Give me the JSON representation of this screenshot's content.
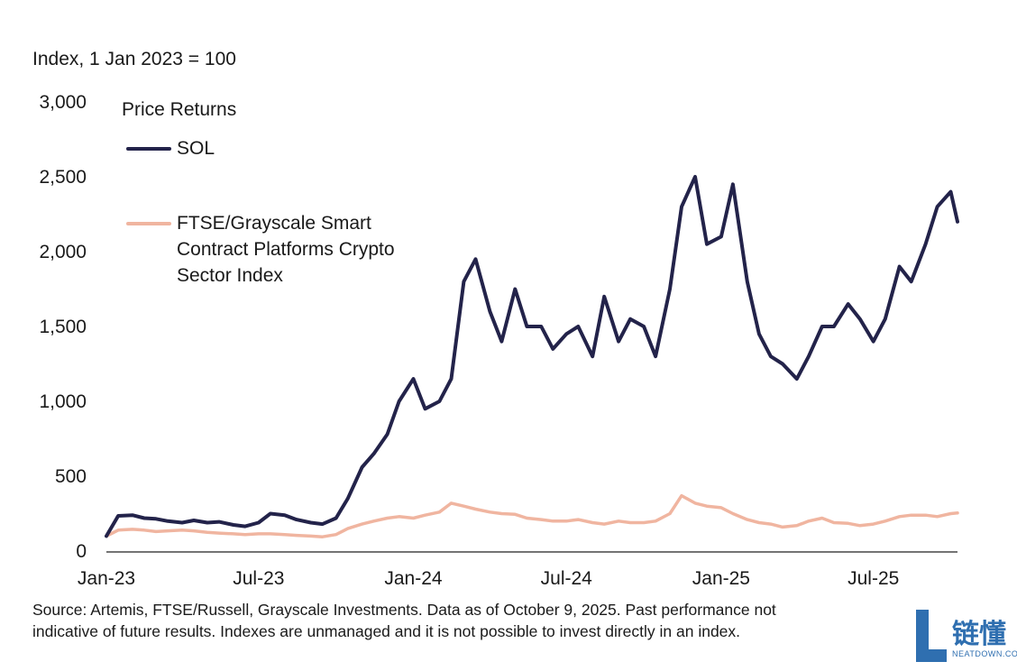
{
  "chart_data": {
    "type": "line",
    "title": "",
    "ylabel": "Index, 1 Jan 2023 = 100",
    "legend_title": "Price Returns",
    "legend_position": "top-left",
    "grid": false,
    "ylim": [
      0,
      3000
    ],
    "yticks": [
      "0",
      "500",
      "1,000",
      "1,500",
      "2,000",
      "2,500",
      "3,000"
    ],
    "ytick_values": [
      0,
      500,
      1000,
      1500,
      2000,
      2500,
      3000
    ],
    "xlim": [
      "2023-01-01",
      "2025-10-09"
    ],
    "xticks": [
      "Jan-23",
      "Jul-23",
      "Jan-24",
      "Jul-24",
      "Jan-25",
      "Jul-25"
    ],
    "xtick_dates": [
      "2023-01-01",
      "2023-07-01",
      "2024-01-01",
      "2024-07-01",
      "2025-01-01",
      "2025-07-01"
    ],
    "x": [
      "2023-01-01",
      "2023-01-15",
      "2023-02-01",
      "2023-02-15",
      "2023-03-01",
      "2023-03-15",
      "2023-04-01",
      "2023-04-15",
      "2023-05-01",
      "2023-05-15",
      "2023-06-01",
      "2023-06-15",
      "2023-07-01",
      "2023-07-15",
      "2023-08-01",
      "2023-08-15",
      "2023-09-01",
      "2023-09-15",
      "2023-10-01",
      "2023-10-15",
      "2023-11-01",
      "2023-11-15",
      "2023-12-01",
      "2023-12-15",
      "2024-01-01",
      "2024-01-15",
      "2024-02-01",
      "2024-02-15",
      "2024-03-01",
      "2024-03-15",
      "2024-04-01",
      "2024-04-15",
      "2024-05-01",
      "2024-05-15",
      "2024-06-01",
      "2024-06-15",
      "2024-07-01",
      "2024-07-15",
      "2024-08-01",
      "2024-08-15",
      "2024-09-01",
      "2024-09-15",
      "2024-10-01",
      "2024-10-15",
      "2024-11-01",
      "2024-11-15",
      "2024-12-01",
      "2024-12-15",
      "2025-01-01",
      "2025-01-15",
      "2025-02-01",
      "2025-02-15",
      "2025-03-01",
      "2025-03-15",
      "2025-04-01",
      "2025-04-15",
      "2025-05-01",
      "2025-05-15",
      "2025-06-01",
      "2025-06-15",
      "2025-07-01",
      "2025-07-15",
      "2025-08-01",
      "2025-08-15",
      "2025-09-01",
      "2025-09-15",
      "2025-10-01",
      "2025-10-09"
    ],
    "series": [
      {
        "name": "SOL",
        "color": "#23234a",
        "values": [
          100,
          235,
          240,
          220,
          215,
          200,
          190,
          205,
          190,
          195,
          175,
          165,
          190,
          250,
          240,
          210,
          190,
          180,
          220,
          350,
          560,
          650,
          780,
          1000,
          1150,
          950,
          1000,
          1150,
          1800,
          1950,
          1600,
          1400,
          1750,
          1500,
          1500,
          1350,
          1450,
          1500,
          1300,
          1700,
          1400,
          1550,
          1500,
          1300,
          1750,
          2300,
          2500,
          2050,
          2100,
          2450,
          1800,
          1450,
          1300,
          1250,
          1150,
          1300,
          1500,
          1500,
          1650,
          1550,
          1400,
          1550,
          1900,
          1800,
          2050,
          2300,
          2400,
          2200
        ]
      },
      {
        "name": "FTSE/Grayscale Smart Contract Platforms Crypto Sector Index",
        "color": "#f0b5a0",
        "values": [
          100,
          140,
          145,
          140,
          130,
          135,
          140,
          135,
          125,
          120,
          115,
          110,
          115,
          115,
          110,
          105,
          100,
          95,
          110,
          150,
          180,
          200,
          220,
          230,
          220,
          240,
          260,
          320,
          300,
          280,
          260,
          250,
          245,
          220,
          210,
          200,
          200,
          210,
          190,
          180,
          200,
          190,
          190,
          200,
          250,
          370,
          320,
          300,
          290,
          250,
          210,
          190,
          180,
          160,
          170,
          200,
          220,
          190,
          185,
          170,
          180,
          200,
          230,
          240,
          240,
          230,
          250,
          255
        ]
      }
    ]
  },
  "legend": {
    "title": "Price Returns",
    "items": [
      {
        "label_lines": [
          "SOL"
        ],
        "color": "#23234a"
      },
      {
        "label_lines": [
          "FTSE/Grayscale Smart",
          "Contract Platforms Crypto",
          "Sector Index"
        ],
        "color": "#f0b5a0"
      }
    ]
  },
  "source_note": {
    "line1": "Source: Artemis, FTSE/Russell, Grayscale Investments. Data as of October 9, 2025. Past performance not",
    "line2": "indicative of future results. Indexes are unmanaged and it is not possible to invest directly in an index."
  },
  "watermark": {
    "chinese": "链懂",
    "english": "NEATDOWN.COM"
  }
}
